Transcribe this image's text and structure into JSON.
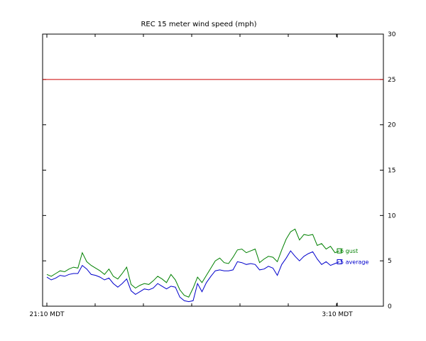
{
  "chart_data": {
    "type": "line",
    "title": "REC 15 meter wind speed (mph)",
    "ylim": [
      0,
      30
    ],
    "yticks": [
      0,
      5,
      10,
      15,
      20,
      25,
      30
    ],
    "y_axis_side": "right",
    "xlabels": [
      "21:10 MDT",
      "3:10 MDT"
    ],
    "threshold": {
      "value": 25,
      "color": "#cc0000"
    },
    "series": [
      {
        "name": "gust",
        "label": "6 gust",
        "color": "#008000",
        "values": [
          3.5,
          3.3,
          3.6,
          3.9,
          3.8,
          4.1,
          4.3,
          4.2,
          5.9,
          4.9,
          4.5,
          4.2,
          3.9,
          3.5,
          4.1,
          3.3,
          3.0,
          3.6,
          4.3,
          2.4,
          2.0,
          2.3,
          2.5,
          2.4,
          2.8,
          3.3,
          3.0,
          2.6,
          3.5,
          2.9,
          1.8,
          1.2,
          1.0,
          2.0,
          3.2,
          2.6,
          3.4,
          4.2,
          5.0,
          5.3,
          4.8,
          4.7,
          5.4,
          6.2,
          6.3,
          5.9,
          6.1,
          6.3,
          4.8,
          5.2,
          5.5,
          5.4,
          4.9,
          6.2,
          7.4,
          8.2,
          8.5,
          7.3,
          7.9,
          7.8,
          7.9,
          6.7,
          6.9,
          6.3,
          6.6,
          5.9,
          6.1
        ]
      },
      {
        "name": "average",
        "label": "5 average",
        "color": "#0000cc",
        "values": [
          3.2,
          2.9,
          3.1,
          3.4,
          3.3,
          3.5,
          3.6,
          3.6,
          4.5,
          4.1,
          3.5,
          3.4,
          3.2,
          2.9,
          3.1,
          2.5,
          2.1,
          2.5,
          3.0,
          1.7,
          1.3,
          1.6,
          1.9,
          1.8,
          2.0,
          2.5,
          2.2,
          1.9,
          2.2,
          2.1,
          1.0,
          0.6,
          0.5,
          0.6,
          2.5,
          1.6,
          2.6,
          3.3,
          3.9,
          4.0,
          3.9,
          3.9,
          4.0,
          4.9,
          4.8,
          4.6,
          4.7,
          4.6,
          4.0,
          4.1,
          4.4,
          4.2,
          3.4,
          4.6,
          5.3,
          6.1,
          5.5,
          5.0,
          5.5,
          5.8,
          6.0,
          5.2,
          4.6,
          4.9,
          4.5,
          4.7,
          4.9
        ]
      }
    ]
  }
}
